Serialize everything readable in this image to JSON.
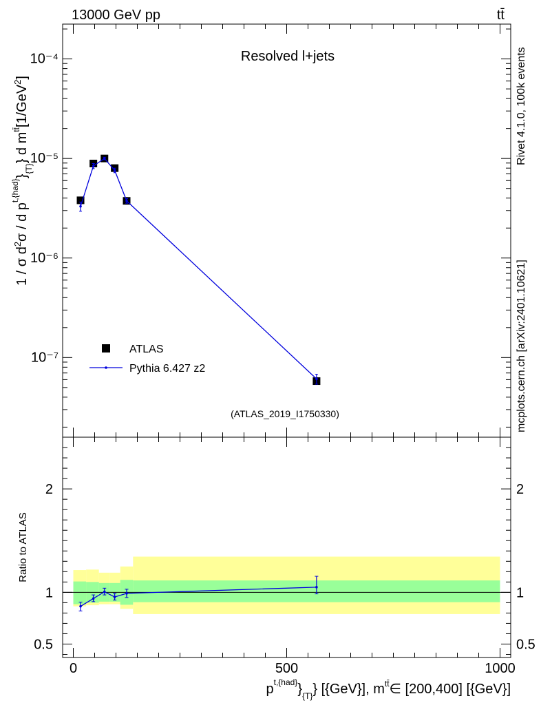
{
  "header": {
    "energy_label": "13000 GeV pp",
    "process_label": "tt̄"
  },
  "side": {
    "rivet_label": "Rivet 4.1.0,  100k events",
    "mcplots_label": "mcplots.cern.ch [arXiv:2401.10621]"
  },
  "colors": {
    "data": "#000000",
    "mc": "#0000dd",
    "band_outer": "#ffff99",
    "band_inner": "#99ff99",
    "side_text": "#888888"
  },
  "chart_data": [
    {
      "name": "main",
      "type": "scatter",
      "yscale": "log",
      "title": "Resolved l+jets",
      "analysis_label": "(ATLAS_2019_I1750330)",
      "ylabel": "1 / σ d²σ / d p_T^{t,{had}} d m^{tt̄} [1/GeV²]",
      "xlim": [
        -25,
        1025
      ],
      "ylim_log10": [
        -7.8,
        -3.65
      ],
      "y_tick_labels": [
        "10⁻⁷",
        "10⁻⁶",
        "10⁻⁵",
        "10⁻⁴"
      ],
      "y_tick_exponents": [
        -7,
        -6,
        -5,
        -4
      ],
      "legend": {
        "placement": "bottom-left",
        "entries": [
          "ATLAS",
          "Pythia 6.427 z2"
        ]
      },
      "series": [
        {
          "name": "ATLAS",
          "style": "square-markers",
          "points": [
            {
              "x": 17,
              "y": 3.8e-06
            },
            {
              "x": 47,
              "y": 8.9e-06
            },
            {
              "x": 73,
              "y": 1e-05
            },
            {
              "x": 97,
              "y": 8e-06
            },
            {
              "x": 125,
              "y": 3.75e-06
            },
            {
              "x": 570,
              "y": 5.8e-08
            }
          ]
        },
        {
          "name": "Pythia 6.427 z2",
          "style": "line-with-errors",
          "points": [
            {
              "x": 17,
              "y": 3.3e-06,
              "ylo": 2.95e-06,
              "yhi": 3.65e-06
            },
            {
              "x": 47,
              "y": 8.4e-06,
              "ylo": 7.9e-06,
              "yhi": 8.9e-06
            },
            {
              "x": 73,
              "y": 1e-05,
              "ylo": 9.7e-06,
              "yhi": 1.03e-05
            },
            {
              "x": 97,
              "y": 7.6e-06,
              "ylo": 7.2e-06,
              "yhi": 8e-06
            },
            {
              "x": 125,
              "y": 3.75e-06,
              "ylo": 3.55e-06,
              "yhi": 3.95e-06
            },
            {
              "x": 570,
              "y": 6.1e-08,
              "ylo": 5.4e-08,
              "yhi": 6.8e-08
            }
          ]
        }
      ]
    },
    {
      "name": "ratio",
      "type": "line",
      "ylabel": "Ratio to ATLAS",
      "xlabel": "p_T^{t,{had}} [{GeV}], m^{tt̄} ∈ [200,400] [{GeV}]",
      "xlim": [
        -25,
        1025
      ],
      "ylim": [
        0.37,
        2.5
      ],
      "x_ticks": [
        0,
        500,
        1000
      ],
      "x_tick_labels": [
        "0",
        "500",
        "1000"
      ],
      "y_ticks": [
        0.5,
        1,
        2
      ],
      "y_tick_labels": [
        "0.5",
        "1",
        "2"
      ],
      "bands": [
        {
          "x0": 0,
          "x1": 30,
          "inner": [
            0.885,
            1.105
          ],
          "outer": [
            0.865,
            1.215
          ]
        },
        {
          "x0": 30,
          "x1": 60,
          "inner": [
            0.9,
            1.1
          ],
          "outer": [
            0.875,
            1.22
          ]
        },
        {
          "x0": 60,
          "x1": 85,
          "inner": [
            0.91,
            1.09
          ],
          "outer": [
            0.885,
            1.19
          ]
        },
        {
          "x0": 85,
          "x1": 110,
          "inner": [
            0.91,
            1.09
          ],
          "outer": [
            0.885,
            1.19
          ]
        },
        {
          "x0": 110,
          "x1": 140,
          "inner": [
            0.88,
            1.12
          ],
          "outer": [
            0.84,
            1.25
          ]
        },
        {
          "x0": 140,
          "x1": 1000,
          "inner": [
            0.905,
            1.115
          ],
          "outer": [
            0.79,
            1.345
          ]
        }
      ],
      "series": [
        {
          "name": "Pythia 6.427 z2",
          "points": [
            {
              "x": 17,
              "y": 0.865,
              "ylo": 0.82,
              "yhi": 0.905
            },
            {
              "x": 47,
              "y": 0.94,
              "ylo": 0.91,
              "yhi": 0.975
            },
            {
              "x": 73,
              "y": 1.005,
              "ylo": 0.975,
              "yhi": 1.04
            },
            {
              "x": 97,
              "y": 0.955,
              "ylo": 0.925,
              "yhi": 0.99
            },
            {
              "x": 125,
              "y": 0.99,
              "ylo": 0.95,
              "yhi": 1.03
            },
            {
              "x": 570,
              "y": 1.05,
              "ylo": 0.985,
              "yhi": 1.155
            }
          ]
        }
      ]
    }
  ]
}
